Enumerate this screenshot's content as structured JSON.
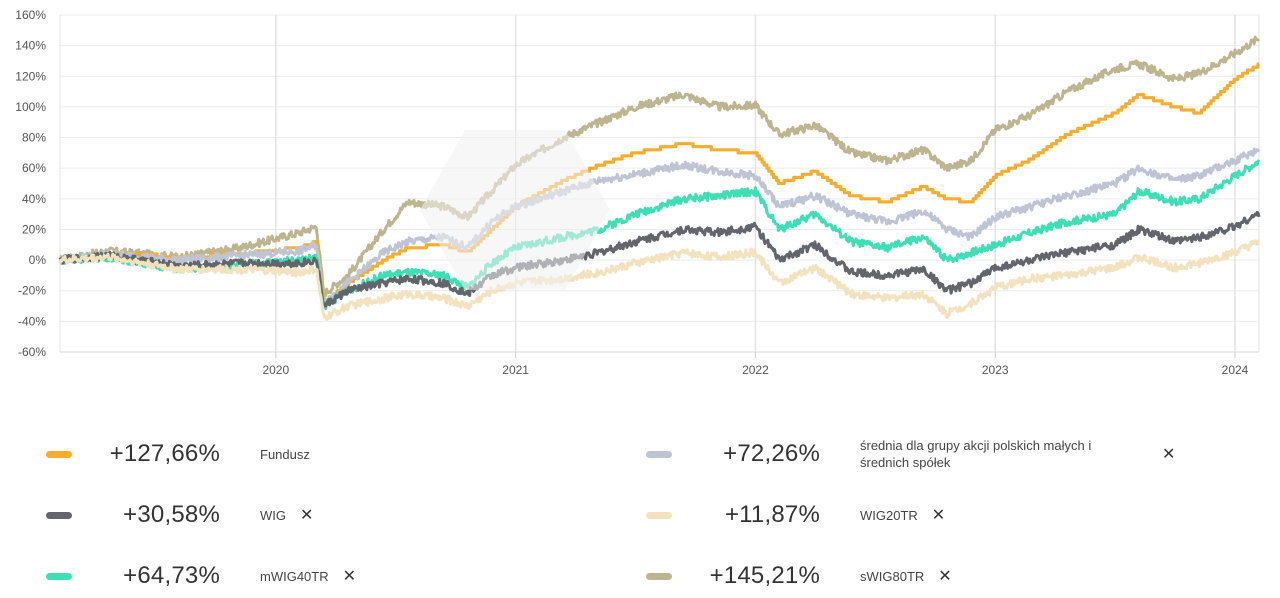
{
  "chart_data": {
    "type": "line",
    "title": "",
    "xlabel": "",
    "ylabel": "",
    "ylim": [
      -60,
      160
    ],
    "xlim": [
      2019.1,
      2024.1
    ],
    "yticks": [
      "160%",
      "140%",
      "120%",
      "100%",
      "80%",
      "60%",
      "40%",
      "20%",
      "0%",
      "-20%",
      "-40%",
      "-60%"
    ],
    "xticks": [
      {
        "label": "2020",
        "value": 2020.0
      },
      {
        "label": "2021",
        "value": 2021.0
      },
      {
        "label": "2022",
        "value": 2022.0
      },
      {
        "label": "2023",
        "value": 2023.0
      },
      {
        "label": "2024",
        "value": 2024.0
      }
    ],
    "series": [
      {
        "name": "sWIG80TR",
        "color": "#bdb58f",
        "final": "+145,21%",
        "points": [
          [
            2019.1,
            0
          ],
          [
            2019.3,
            6
          ],
          [
            2019.6,
            2
          ],
          [
            2019.85,
            8
          ],
          [
            2020.1,
            18
          ],
          [
            2020.17,
            22
          ],
          [
            2020.2,
            -22
          ],
          [
            2020.3,
            -10
          ],
          [
            2020.45,
            20
          ],
          [
            2020.55,
            38
          ],
          [
            2020.7,
            35
          ],
          [
            2020.8,
            28
          ],
          [
            2020.9,
            45
          ],
          [
            2021.0,
            62
          ],
          [
            2021.2,
            80
          ],
          [
            2021.35,
            90
          ],
          [
            2021.5,
            100
          ],
          [
            2021.7,
            108
          ],
          [
            2021.85,
            100
          ],
          [
            2022.0,
            101
          ],
          [
            2022.1,
            82
          ],
          [
            2022.25,
            88
          ],
          [
            2022.4,
            70
          ],
          [
            2022.55,
            65
          ],
          [
            2022.7,
            72
          ],
          [
            2022.8,
            60
          ],
          [
            2022.9,
            65
          ],
          [
            2023.0,
            85
          ],
          [
            2023.15,
            95
          ],
          [
            2023.3,
            110
          ],
          [
            2023.5,
            125
          ],
          [
            2023.6,
            128
          ],
          [
            2023.75,
            118
          ],
          [
            2023.85,
            122
          ],
          [
            2024.0,
            135
          ],
          [
            2024.1,
            145
          ]
        ]
      },
      {
        "name": "Fundusz",
        "color": "#f5ad2f",
        "final": "+127,66%",
        "points": [
          [
            2019.1,
            0
          ],
          [
            2019.3,
            5
          ],
          [
            2019.6,
            2
          ],
          [
            2019.85,
            4
          ],
          [
            2020.1,
            8
          ],
          [
            2020.17,
            12
          ],
          [
            2020.2,
            -28
          ],
          [
            2020.3,
            -15
          ],
          [
            2020.45,
            0
          ],
          [
            2020.55,
            8
          ],
          [
            2020.7,
            10
          ],
          [
            2020.8,
            5
          ],
          [
            2020.9,
            20
          ],
          [
            2021.0,
            35
          ],
          [
            2021.2,
            52
          ],
          [
            2021.35,
            62
          ],
          [
            2021.5,
            70
          ],
          [
            2021.7,
            76
          ],
          [
            2021.85,
            72
          ],
          [
            2022.0,
            70
          ],
          [
            2022.1,
            50
          ],
          [
            2022.25,
            58
          ],
          [
            2022.4,
            42
          ],
          [
            2022.55,
            38
          ],
          [
            2022.7,
            48
          ],
          [
            2022.8,
            40
          ],
          [
            2022.9,
            38
          ],
          [
            2023.0,
            55
          ],
          [
            2023.15,
            66
          ],
          [
            2023.3,
            82
          ],
          [
            2023.5,
            96
          ],
          [
            2023.6,
            108
          ],
          [
            2023.75,
            100
          ],
          [
            2023.85,
            96
          ],
          [
            2024.0,
            118
          ],
          [
            2024.1,
            127.66
          ]
        ]
      },
      {
        "name": "średnia dla grupy akcji polskich małych i średnich spółek",
        "color": "#bfc4d4",
        "final": "+72,26%",
        "points": [
          [
            2019.1,
            0
          ],
          [
            2019.3,
            4
          ],
          [
            2019.6,
            0
          ],
          [
            2019.85,
            3
          ],
          [
            2020.1,
            6
          ],
          [
            2020.17,
            10
          ],
          [
            2020.2,
            -28
          ],
          [
            2020.3,
            -15
          ],
          [
            2020.45,
            5
          ],
          [
            2020.55,
            12
          ],
          [
            2020.7,
            15
          ],
          [
            2020.8,
            8
          ],
          [
            2020.9,
            25
          ],
          [
            2021.0,
            35
          ],
          [
            2021.2,
            45
          ],
          [
            2021.35,
            52
          ],
          [
            2021.5,
            56
          ],
          [
            2021.7,
            62
          ],
          [
            2021.85,
            58
          ],
          [
            2022.0,
            55
          ],
          [
            2022.1,
            35
          ],
          [
            2022.25,
            42
          ],
          [
            2022.4,
            30
          ],
          [
            2022.55,
            25
          ],
          [
            2022.7,
            32
          ],
          [
            2022.8,
            20
          ],
          [
            2022.9,
            15
          ],
          [
            2023.0,
            28
          ],
          [
            2023.15,
            35
          ],
          [
            2023.3,
            42
          ],
          [
            2023.5,
            50
          ],
          [
            2023.6,
            60
          ],
          [
            2023.75,
            52
          ],
          [
            2023.85,
            55
          ],
          [
            2024.0,
            65
          ],
          [
            2024.1,
            72.26
          ]
        ]
      },
      {
        "name": "mWIG40TR",
        "color": "#3ddfb4",
        "final": "+64,73%",
        "points": [
          [
            2019.1,
            0
          ],
          [
            2019.3,
            2
          ],
          [
            2019.6,
            -6
          ],
          [
            2019.85,
            -3
          ],
          [
            2020.1,
            0
          ],
          [
            2020.17,
            2
          ],
          [
            2020.2,
            -30
          ],
          [
            2020.3,
            -20
          ],
          [
            2020.45,
            -10
          ],
          [
            2020.55,
            -8
          ],
          [
            2020.7,
            -10
          ],
          [
            2020.8,
            -18
          ],
          [
            2020.9,
            -2
          ],
          [
            2021.0,
            8
          ],
          [
            2021.2,
            15
          ],
          [
            2021.35,
            20
          ],
          [
            2021.5,
            30
          ],
          [
            2021.7,
            40
          ],
          [
            2021.85,
            42
          ],
          [
            2022.0,
            45
          ],
          [
            2022.1,
            20
          ],
          [
            2022.25,
            30
          ],
          [
            2022.4,
            12
          ],
          [
            2022.55,
            8
          ],
          [
            2022.7,
            15
          ],
          [
            2022.8,
            0
          ],
          [
            2022.9,
            5
          ],
          [
            2023.0,
            10
          ],
          [
            2023.15,
            18
          ],
          [
            2023.3,
            25
          ],
          [
            2023.5,
            30
          ],
          [
            2023.6,
            45
          ],
          [
            2023.75,
            38
          ],
          [
            2023.85,
            40
          ],
          [
            2024.0,
            55
          ],
          [
            2024.1,
            64.73
          ]
        ]
      },
      {
        "name": "WIG",
        "color": "#62656b",
        "final": "+30,58%",
        "points": [
          [
            2019.1,
            0
          ],
          [
            2019.3,
            3
          ],
          [
            2019.6,
            -4
          ],
          [
            2019.85,
            -2
          ],
          [
            2020.1,
            -2
          ],
          [
            2020.17,
            0
          ],
          [
            2020.2,
            -30
          ],
          [
            2020.3,
            -20
          ],
          [
            2020.45,
            -15
          ],
          [
            2020.55,
            -12
          ],
          [
            2020.7,
            -15
          ],
          [
            2020.8,
            -22
          ],
          [
            2020.9,
            -10
          ],
          [
            2021.0,
            -5
          ],
          [
            2021.2,
            0
          ],
          [
            2021.35,
            5
          ],
          [
            2021.5,
            12
          ],
          [
            2021.7,
            20
          ],
          [
            2021.85,
            18
          ],
          [
            2022.0,
            22
          ],
          [
            2022.1,
            0
          ],
          [
            2022.25,
            10
          ],
          [
            2022.4,
            -8
          ],
          [
            2022.55,
            -10
          ],
          [
            2022.7,
            -6
          ],
          [
            2022.8,
            -20
          ],
          [
            2022.9,
            -15
          ],
          [
            2023.0,
            -5
          ],
          [
            2023.15,
            0
          ],
          [
            2023.3,
            5
          ],
          [
            2023.5,
            10
          ],
          [
            2023.6,
            20
          ],
          [
            2023.75,
            12
          ],
          [
            2023.85,
            15
          ],
          [
            2024.0,
            22
          ],
          [
            2024.1,
            30.58
          ]
        ]
      },
      {
        "name": "WIG20TR",
        "color": "#f2e2bd",
        "final": "+11,87%",
        "points": [
          [
            2019.1,
            0
          ],
          [
            2019.3,
            2
          ],
          [
            2019.6,
            -6
          ],
          [
            2019.85,
            -6
          ],
          [
            2020.1,
            -8
          ],
          [
            2020.17,
            -6
          ],
          [
            2020.2,
            -38
          ],
          [
            2020.3,
            -30
          ],
          [
            2020.45,
            -25
          ],
          [
            2020.55,
            -22
          ],
          [
            2020.7,
            -25
          ],
          [
            2020.8,
            -30
          ],
          [
            2020.9,
            -20
          ],
          [
            2021.0,
            -15
          ],
          [
            2021.2,
            -12
          ],
          [
            2021.35,
            -8
          ],
          [
            2021.5,
            -2
          ],
          [
            2021.7,
            5
          ],
          [
            2021.85,
            2
          ],
          [
            2022.0,
            5
          ],
          [
            2022.1,
            -15
          ],
          [
            2022.25,
            -5
          ],
          [
            2022.4,
            -22
          ],
          [
            2022.55,
            -25
          ],
          [
            2022.7,
            -22
          ],
          [
            2022.8,
            -35
          ],
          [
            2022.9,
            -28
          ],
          [
            2023.0,
            -18
          ],
          [
            2023.15,
            -12
          ],
          [
            2023.3,
            -10
          ],
          [
            2023.5,
            -5
          ],
          [
            2023.6,
            2
          ],
          [
            2023.75,
            -5
          ],
          [
            2023.85,
            -2
          ],
          [
            2024.0,
            5
          ],
          [
            2024.1,
            11.87
          ]
        ]
      }
    ]
  },
  "legend": [
    {
      "pct": "+127,66%",
      "label": "Fundusz",
      "color": "#f5ad2f",
      "removable": false
    },
    {
      "pct": "+72,26%",
      "label": "średnia dla grupy akcji polskich małych i średnich spółek",
      "color": "#bfc4d4",
      "removable": true
    },
    {
      "pct": "+30,58%",
      "label": "WIG",
      "color": "#62656b",
      "removable": true
    },
    {
      "pct": "+11,87%",
      "label": "WIG20TR",
      "color": "#f2e2bd",
      "removable": true
    },
    {
      "pct": "+64,73%",
      "label": "mWIG40TR",
      "color": "#3ddfb4",
      "removable": true
    },
    {
      "pct": "+145,21%",
      "label": "sWIG80TR",
      "color": "#bdb58f",
      "removable": true
    }
  ],
  "remove_glyph": "✕"
}
